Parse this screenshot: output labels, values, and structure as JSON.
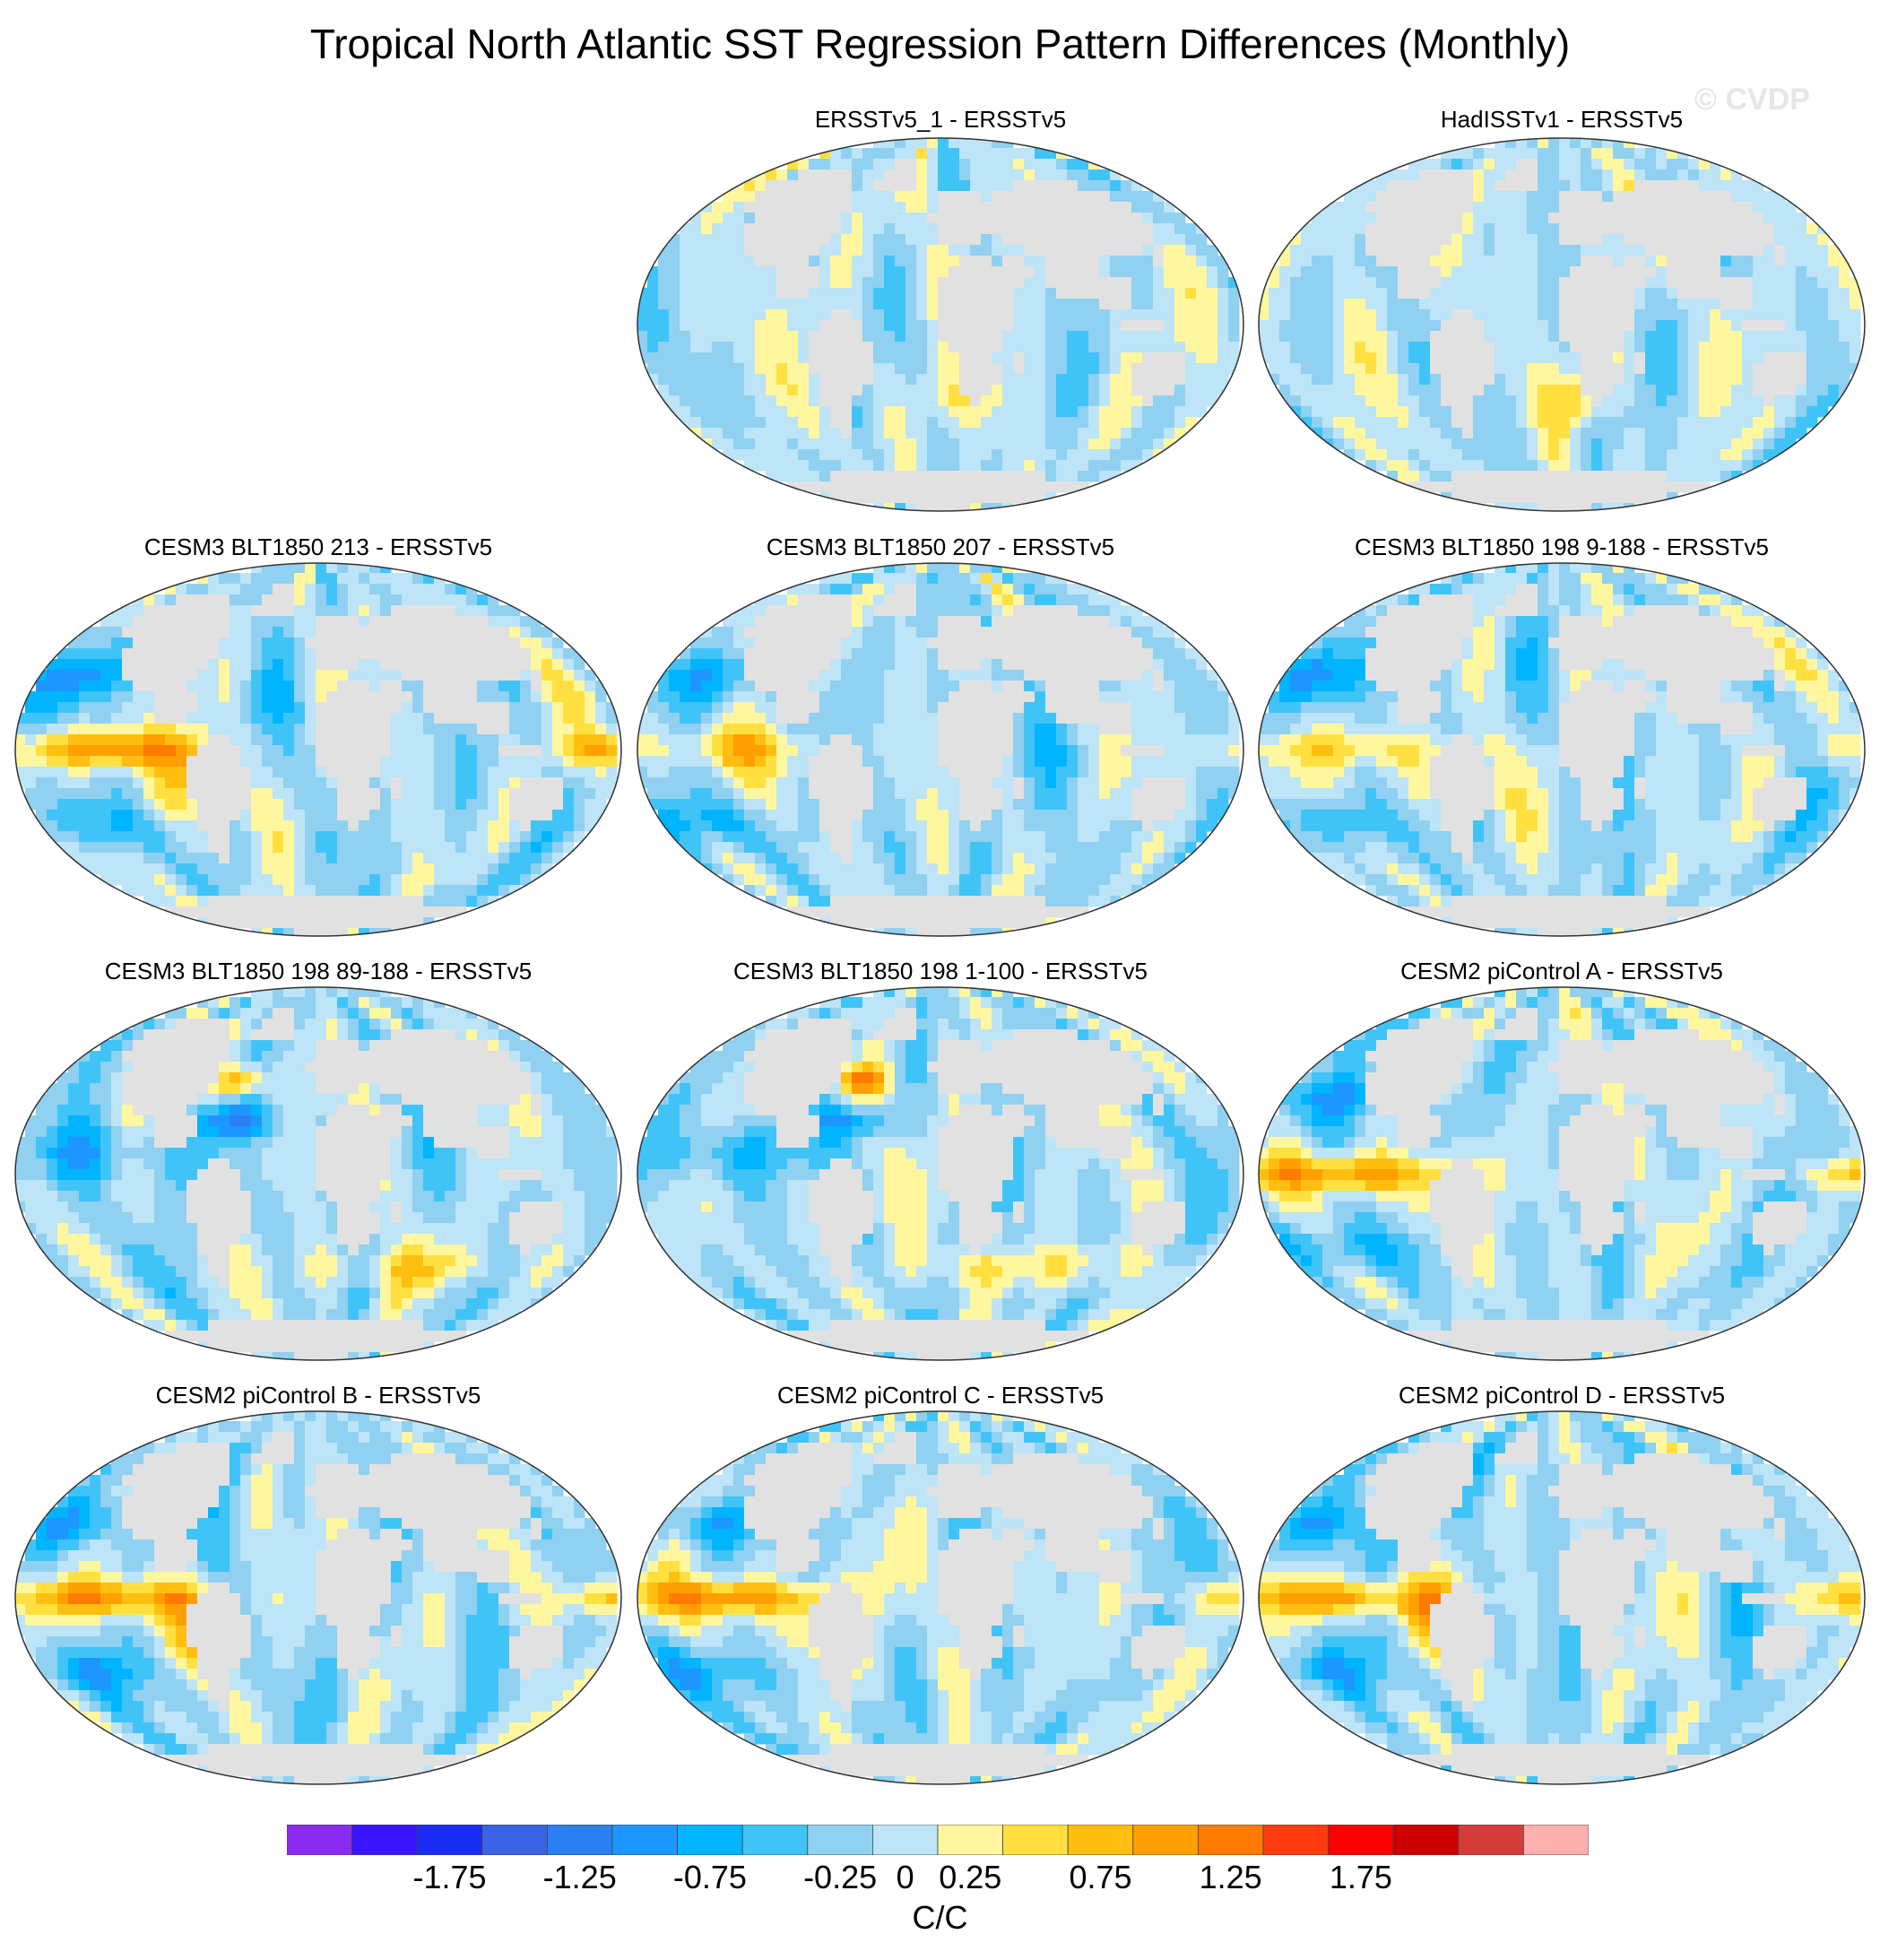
{
  "chart_data": {
    "type": "heatmap",
    "title": "Tropical North Atlantic SST Regression Pattern Differences (Monthly)",
    "watermark": "© CVDP",
    "units": "C/C",
    "projection": "Robinson (global, land masked grey)",
    "colorbar": {
      "levels": [
        -1.75,
        -1.5,
        -1.25,
        -1.0,
        -0.75,
        -0.5,
        -0.25,
        0,
        0.25,
        0.5,
        0.75,
        1.0,
        1.25,
        1.5,
        1.75
      ],
      "labels": [
        "-1.75",
        "-1.25",
        "-0.75",
        "-0.25",
        "0",
        "0.25",
        "0.75",
        "1.25",
        "1.75"
      ],
      "colors": [
        "#8a2bf0",
        "#3a14ff",
        "#1b2cf2",
        "#3a63e6",
        "#2a80f0",
        "#1e96ff",
        "#00b4ff",
        "#40c4f8",
        "#90d0f0",
        "#bde4f7",
        "#fff6a0",
        "#ffe040",
        "#ffbe10",
        "#ffa000",
        "#ff7a00",
        "#ff3c10",
        "#ff0000",
        "#cc0000",
        "#d43c3c",
        "#ffb0b0"
      ]
    },
    "panels": [
      {
        "title": "ERSSTv5_1 - ERSSTv5",
        "col": 1,
        "row": 0,
        "pattern": "weak"
      },
      {
        "title": "HadISSTv1 - ERSSTv5",
        "col": 2,
        "row": 0,
        "pattern": "weak"
      },
      {
        "title": "CESM3 BLT1850 213 - ERSSTv5",
        "col": 0,
        "row": 1,
        "pattern": "enso"
      },
      {
        "title": "CESM3 BLT1850 207 - ERSSTv5",
        "col": 1,
        "row": 1,
        "pattern": "mixed"
      },
      {
        "title": "CESM3 BLT1850 198 9-188 - ERSSTv5",
        "col": 2,
        "row": 1,
        "pattern": "mixed"
      },
      {
        "title": "CESM3 BLT1850 198 89-188 - ERSSTv5",
        "col": 0,
        "row": 2,
        "pattern": "natl"
      },
      {
        "title": "CESM3 BLT1850 198 1-100 - ERSSTv5",
        "col": 1,
        "row": 2,
        "pattern": "natl"
      },
      {
        "title": "CESM2 piControl A - ERSSTv5",
        "col": 2,
        "row": 2,
        "pattern": "enso"
      },
      {
        "title": "CESM2 piControl B - ERSSTv5",
        "col": 0,
        "row": 3,
        "pattern": "enso"
      },
      {
        "title": "CESM2 piControl C - ERSSTv5",
        "col": 1,
        "row": 3,
        "pattern": "enso"
      },
      {
        "title": "CESM2 piControl D - ERSSTv5",
        "col": 2,
        "row": 3,
        "pattern": "enso"
      }
    ]
  }
}
